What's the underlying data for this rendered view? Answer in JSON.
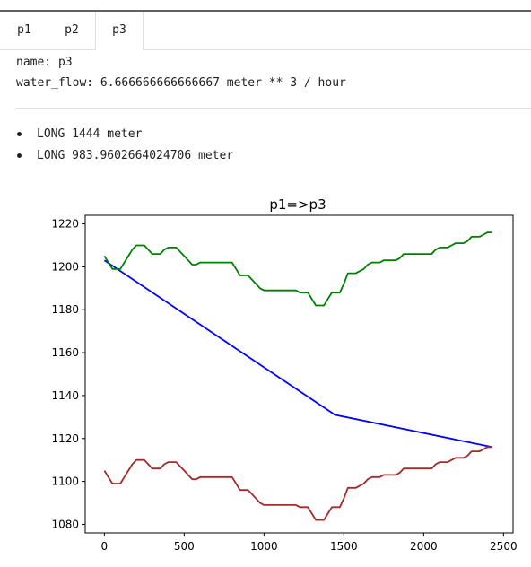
{
  "tabs": [
    {
      "label": "p1",
      "active": false
    },
    {
      "label": "p2",
      "active": false
    },
    {
      "label": "p3",
      "active": true
    }
  ],
  "info": {
    "name_line": "name: p3",
    "water_flow_line": "water_flow: 6.666666666666667 meter ** 3 / hour"
  },
  "list_items": [
    "LONG 1444 meter",
    "LONG 983.9602664024706 meter"
  ],
  "chart_data": {
    "type": "line",
    "title": "p1=>p3",
    "xlabel": "",
    "ylabel": "",
    "xlim": [
      -120,
      2560
    ],
    "ylim": [
      1076,
      1224
    ],
    "xticks": [
      0,
      500,
      1000,
      1500,
      2000,
      2500
    ],
    "yticks": [
      1080,
      1100,
      1120,
      1140,
      1160,
      1180,
      1200,
      1220
    ],
    "grid": false,
    "series": [
      {
        "color": "#0000ff",
        "x": [
          0,
          1444,
          2428
        ],
        "y": [
          1203,
          1131,
          1116
        ]
      },
      {
        "color": "#008000",
        "x": [
          0,
          25,
          50,
          75,
          100,
          125,
          150,
          175,
          200,
          225,
          250,
          275,
          300,
          325,
          350,
          375,
          400,
          425,
          450,
          475,
          500,
          525,
          550,
          575,
          600,
          625,
          650,
          675,
          700,
          725,
          750,
          775,
          800,
          825,
          850,
          875,
          900,
          925,
          950,
          975,
          1000,
          1025,
          1050,
          1075,
          1100,
          1125,
          1150,
          1175,
          1200,
          1225,
          1250,
          1275,
          1300,
          1325,
          1350,
          1375,
          1400,
          1425,
          1450,
          1475,
          1500,
          1525,
          1550,
          1575,
          1600,
          1625,
          1650,
          1675,
          1700,
          1725,
          1750,
          1775,
          1800,
          1825,
          1850,
          1875,
          1900,
          1925,
          1950,
          1975,
          2000,
          2025,
          2050,
          2075,
          2100,
          2125,
          2150,
          2175,
          2200,
          2225,
          2250,
          2275,
          2300,
          2325,
          2350,
          2375,
          2400,
          2428
        ],
        "y": [
          1205,
          1202,
          1199,
          1199,
          1199,
          1202,
          1205,
          1208,
          1210,
          1210,
          1210,
          1208,
          1206,
          1206,
          1206,
          1208,
          1209,
          1209,
          1209,
          1207,
          1205,
          1203,
          1201,
          1201,
          1202,
          1202,
          1202,
          1202,
          1202,
          1202,
          1202,
          1202,
          1202,
          1199,
          1196,
          1196,
          1196,
          1194,
          1192,
          1190,
          1189,
          1189,
          1189,
          1189,
          1189,
          1189,
          1189,
          1189,
          1189,
          1188,
          1188,
          1188,
          1185,
          1182,
          1182,
          1182,
          1185,
          1188,
          1188,
          1188,
          1192,
          1197,
          1197,
          1197,
          1198,
          1199,
          1201,
          1202,
          1202,
          1202,
          1203,
          1203,
          1203,
          1203,
          1204,
          1206,
          1206,
          1206,
          1206,
          1206,
          1206,
          1206,
          1206,
          1208,
          1209,
          1209,
          1209,
          1210,
          1211,
          1211,
          1211,
          1212,
          1214,
          1214,
          1214,
          1215,
          1216,
          1216
        ]
      },
      {
        "color": "#a52a2a",
        "x": [
          0,
          25,
          50,
          75,
          100,
          125,
          150,
          175,
          200,
          225,
          250,
          275,
          300,
          325,
          350,
          375,
          400,
          425,
          450,
          475,
          500,
          525,
          550,
          575,
          600,
          625,
          650,
          675,
          700,
          725,
          750,
          775,
          800,
          825,
          850,
          875,
          900,
          925,
          950,
          975,
          1000,
          1025,
          1050,
          1075,
          1100,
          1125,
          1150,
          1175,
          1200,
          1225,
          1250,
          1275,
          1300,
          1325,
          1350,
          1375,
          1400,
          1425,
          1450,
          1475,
          1500,
          1525,
          1550,
          1575,
          1600,
          1625,
          1650,
          1675,
          1700,
          1725,
          1750,
          1775,
          1800,
          1825,
          1850,
          1875,
          1900,
          1925,
          1950,
          1975,
          2000,
          2025,
          2050,
          2075,
          2100,
          2125,
          2150,
          2175,
          2200,
          2225,
          2250,
          2275,
          2300,
          2325,
          2350,
          2375,
          2400,
          2428
        ],
        "y": [
          1105,
          1102,
          1099,
          1099,
          1099,
          1102,
          1105,
          1108,
          1110,
          1110,
          1110,
          1108,
          1106,
          1106,
          1106,
          1108,
          1109,
          1109,
          1109,
          1107,
          1105,
          1103,
          1101,
          1101,
          1102,
          1102,
          1102,
          1102,
          1102,
          1102,
          1102,
          1102,
          1102,
          1099,
          1096,
          1096,
          1096,
          1094,
          1092,
          1090,
          1089,
          1089,
          1089,
          1089,
          1089,
          1089,
          1089,
          1089,
          1089,
          1088,
          1088,
          1088,
          1085,
          1082,
          1082,
          1082,
          1085,
          1088,
          1088,
          1088,
          1092,
          1097,
          1097,
          1097,
          1098,
          1099,
          1101,
          1102,
          1102,
          1102,
          1103,
          1103,
          1103,
          1103,
          1104,
          1106,
          1106,
          1106,
          1106,
          1106,
          1106,
          1106,
          1106,
          1108,
          1109,
          1109,
          1109,
          1110,
          1111,
          1111,
          1111,
          1112,
          1114,
          1114,
          1114,
          1115,
          1116,
          1116
        ]
      }
    ]
  }
}
